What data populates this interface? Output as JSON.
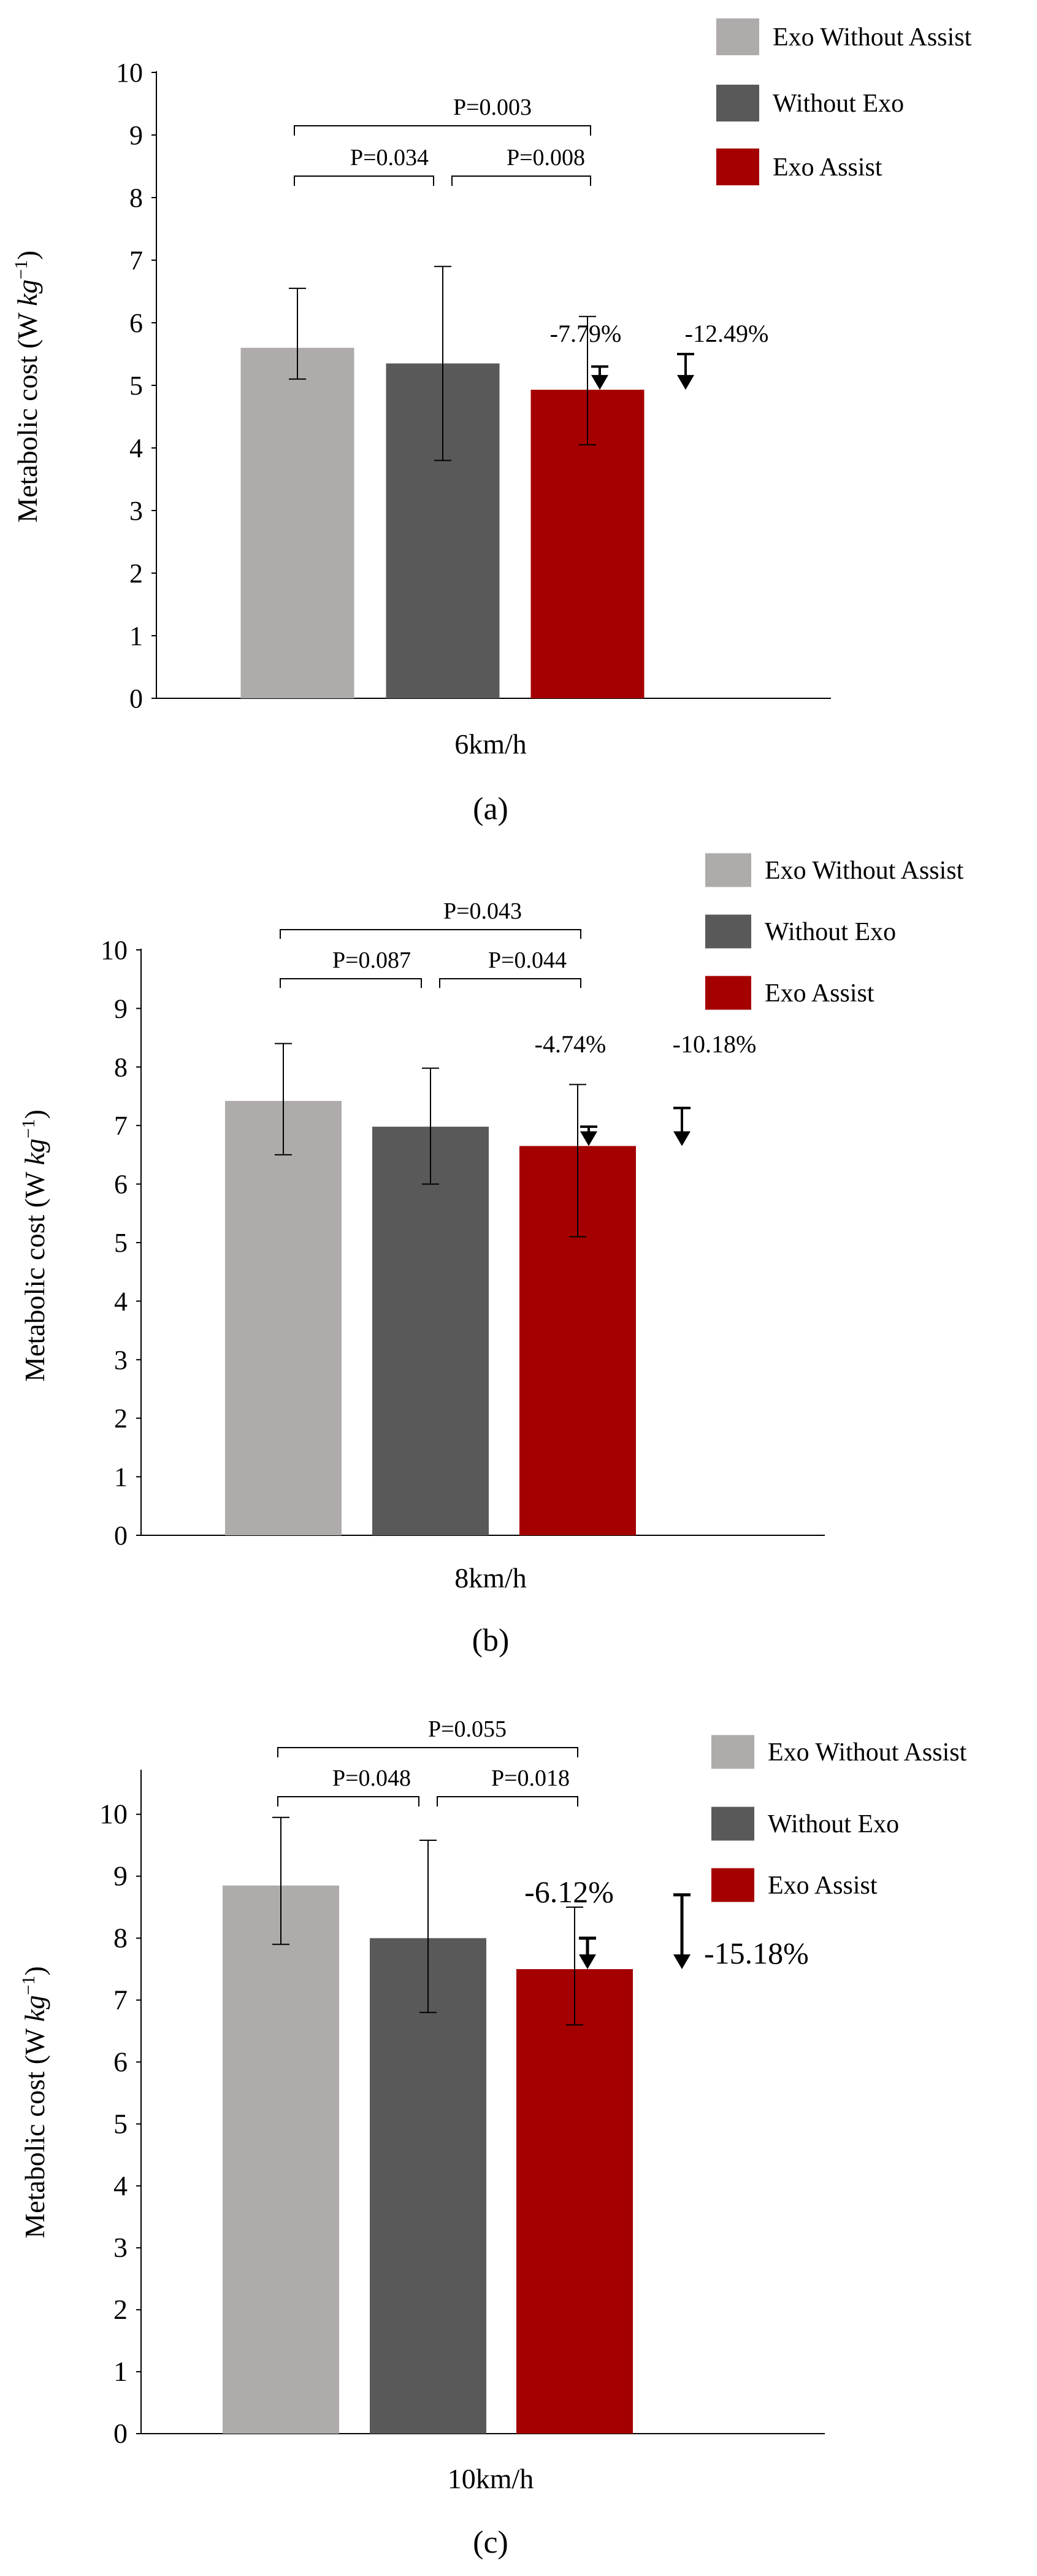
{
  "chart_data": [
    {
      "type": "bar",
      "panel_label": "(a)",
      "categories": [
        "6km/h"
      ],
      "series": [
        {
          "name": "Exo Without Assist",
          "values": [
            5.6
          ],
          "error": [
            [
              5.1,
              6.55
            ]
          ]
        },
        {
          "name": "Without Exo",
          "values": [
            5.35
          ],
          "error": [
            [
              3.8,
              6.9
            ]
          ]
        },
        {
          "name": "Exo Assist",
          "values": [
            4.93
          ],
          "error": [
            [
              4.05,
              6.1
            ]
          ]
        }
      ],
      "xlabel": "",
      "ylabel": "Metabolic cost (W kg⁻¹)",
      "ylabel_main": "Metabolic cost (W ",
      "ylabel_unit": "kg",
      "ylabel_exp": "−1",
      "ylabel_close": ")",
      "ylim": [
        0,
        10
      ],
      "yticks": [
        "0",
        "1",
        "2",
        "3",
        "4",
        "5",
        "6",
        "7",
        "8",
        "9",
        "10"
      ],
      "legend": [
        "Exo Without Assist",
        "Without Exo",
        "Exo Assist"
      ],
      "comparisons": [
        {
          "label": "P=0.003",
          "from": "Exo Without Assist",
          "to": "Exo Assist"
        },
        {
          "label": "P=0.034",
          "from": "Exo Without Assist",
          "to": "Without Exo"
        },
        {
          "label": "P=0.008",
          "from": "Without Exo",
          "to": "Exo Assist"
        }
      ],
      "reductions": [
        {
          "label": "-7.79%",
          "from_value": 5.3,
          "to_value": 4.93,
          "emphasis": "small"
        },
        {
          "label": "-12.49%",
          "from_value": 5.5,
          "to_value": 4.93,
          "emphasis": "small"
        }
      ]
    },
    {
      "type": "bar",
      "panel_label": "(b)",
      "categories": [
        "8km/h"
      ],
      "series": [
        {
          "name": "Exo Without Assist",
          "values": [
            7.42
          ],
          "error": [
            [
              6.5,
              8.4
            ]
          ]
        },
        {
          "name": "Without Exo",
          "values": [
            6.98
          ],
          "error": [
            [
              6.0,
              7.98
            ]
          ]
        },
        {
          "name": "Exo Assist",
          "values": [
            6.65
          ],
          "error": [
            [
              5.1,
              7.7
            ]
          ]
        }
      ],
      "xlabel": "",
      "ylabel": "Metabolic cost (W kg⁻¹)",
      "ylabel_main": "Metabolic cost (W ",
      "ylabel_unit": "kg",
      "ylabel_exp": "−1",
      "ylabel_close": ")",
      "ylim": [
        0,
        10
      ],
      "yticks": [
        "0",
        "1",
        "2",
        "3",
        "4",
        "5",
        "6",
        "7",
        "8",
        "9",
        "10"
      ],
      "legend": [
        "Exo Without Assist",
        "Without Exo",
        "Exo Assist"
      ],
      "comparisons": [
        {
          "label": "P=0.043",
          "from": "Exo Without Assist",
          "to": "Exo Assist"
        },
        {
          "label": "P=0.087",
          "from": "Exo Without Assist",
          "to": "Without Exo"
        },
        {
          "label": "P=0.044",
          "from": "Without Exo",
          "to": "Exo Assist"
        }
      ],
      "reductions": [
        {
          "label": "-4.74%",
          "from_value": 6.98,
          "to_value": 6.65,
          "emphasis": "small"
        },
        {
          "label": "-10.18%",
          "from_value": 7.3,
          "to_value": 6.65,
          "emphasis": "small"
        }
      ]
    },
    {
      "type": "bar",
      "panel_label": "(c)",
      "categories": [
        "10km/h"
      ],
      "series": [
        {
          "name": "Exo Without Assist",
          "values": [
            8.85
          ],
          "error": [
            [
              7.9,
              9.95
            ]
          ]
        },
        {
          "name": "Without Exo",
          "values": [
            8.0
          ],
          "error": [
            [
              6.8,
              9.58
            ]
          ]
        },
        {
          "name": "Exo Assist",
          "values": [
            7.5
          ],
          "error": [
            [
              6.6,
              8.5
            ]
          ]
        }
      ],
      "xlabel": "",
      "ylabel": "Metabolic cost (W kg⁻¹)",
      "ylabel_main": "Metabolic cost (W ",
      "ylabel_unit": "kg",
      "ylabel_exp": "−1",
      "ylabel_close": ")",
      "ylim": [
        0,
        10.7
      ],
      "yticks": [
        "0",
        "1",
        "2",
        "3",
        "4",
        "5",
        "6",
        "7",
        "8",
        "9",
        "10"
      ],
      "legend": [
        "Exo Without Assist",
        "Without Exo",
        "Exo Assist"
      ],
      "comparisons": [
        {
          "label": "P=0.055",
          "from": "Exo Without Assist",
          "to": "Exo Assist"
        },
        {
          "label": "P=0.048",
          "from": "Exo Without Assist",
          "to": "Without Exo"
        },
        {
          "label": "P=0.018",
          "from": "Without Exo",
          "to": "Exo Assist"
        }
      ],
      "reductions": [
        {
          "label": "-6.12%",
          "from_value": 8.0,
          "to_value": 7.5,
          "emphasis": "large"
        },
        {
          "label": "-15.18%",
          "from_value": 8.7,
          "to_value": 7.5,
          "emphasis": "large"
        }
      ]
    }
  ],
  "colors": {
    "exo_without_assist": "#afabab",
    "without_exo": "#595959",
    "exo_assist": "#a50000",
    "axis": "#000000",
    "text": "#000000"
  }
}
